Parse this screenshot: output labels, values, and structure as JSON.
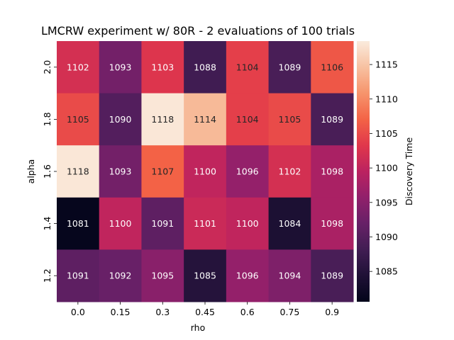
{
  "chart_data": {
    "type": "heatmap",
    "title": "LMCRW experiment w/ 80R - 2 evaluations of 100 trials",
    "xlabel": "rho",
    "ylabel": "alpha",
    "x_categories": [
      "0.0",
      "0.15",
      "0.3",
      "0.45",
      "0.6",
      "0.75",
      "0.9"
    ],
    "y_categories": [
      "2.0",
      "1.8",
      "1.6",
      "1.4",
      "1.2"
    ],
    "values": [
      [
        1102,
        1093,
        1103,
        1088,
        1104,
        1089,
        1106
      ],
      [
        1105,
        1090,
        1118,
        1114,
        1104,
        1105,
        1089
      ],
      [
        1118,
        1093,
        1107,
        1100,
        1096,
        1102,
        1098
      ],
      [
        1081,
        1100,
        1091,
        1101,
        1100,
        1084,
        1098
      ],
      [
        1091,
        1092,
        1095,
        1085,
        1096,
        1094,
        1089
      ]
    ],
    "colorbar": {
      "label": "Discovery Time",
      "range": [
        1080.6,
        1118.4
      ],
      "ticks": [
        "1085",
        "1090",
        "1095",
        "1100",
        "1105",
        "1110",
        "1115"
      ],
      "colormap": "rocket"
    }
  }
}
